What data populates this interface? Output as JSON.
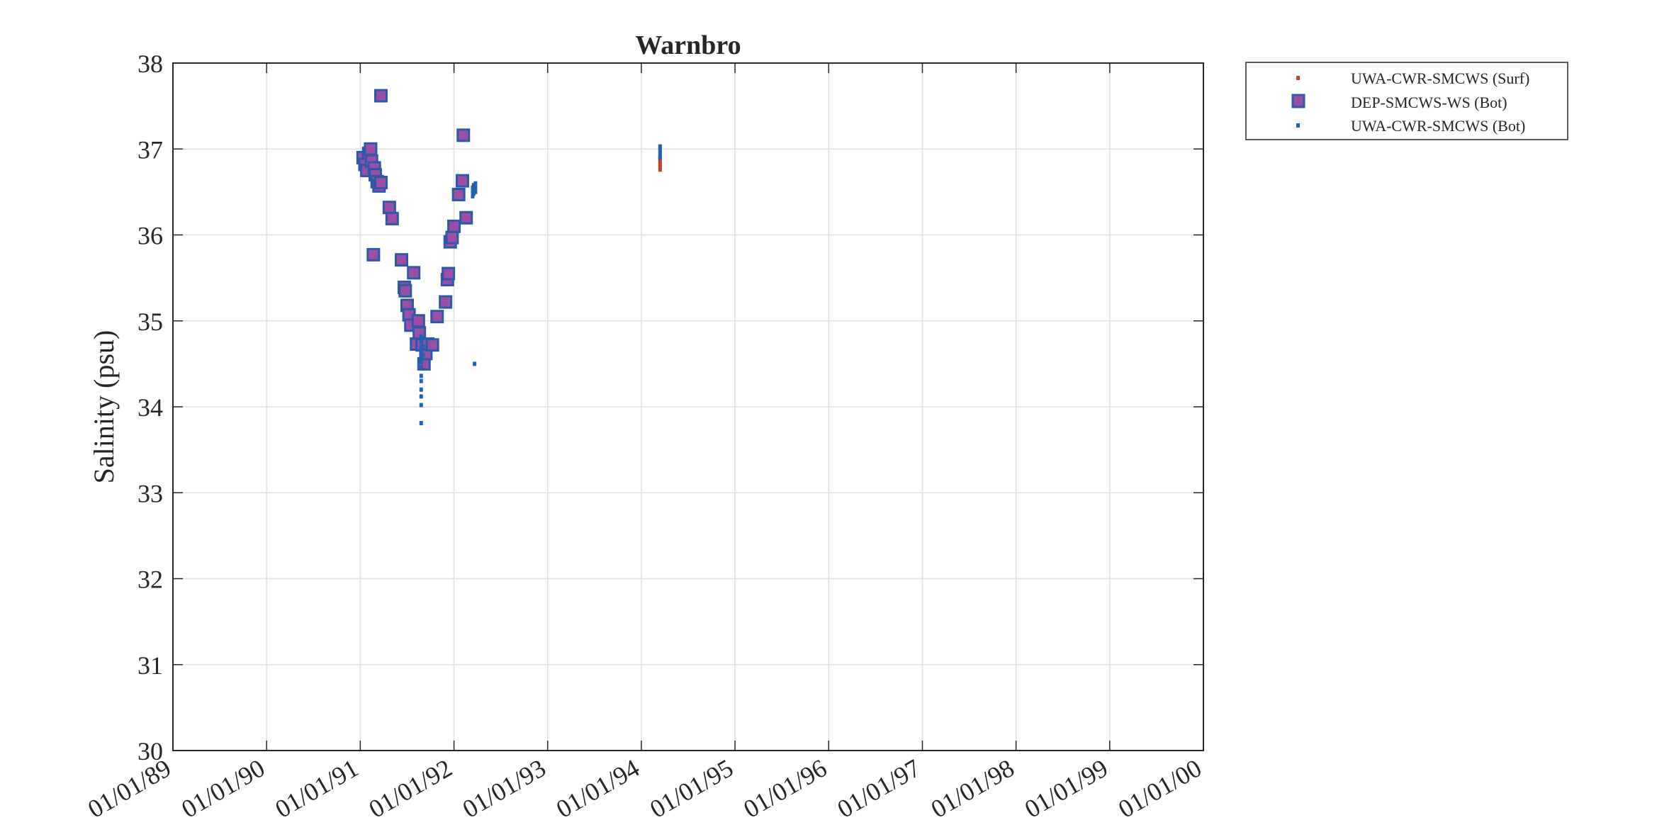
{
  "chart_data": {
    "type": "scatter",
    "title": "Warnbro",
    "xlabel": "",
    "ylabel": "Salinity (psu)",
    "ylim": [
      30,
      38
    ],
    "yticks": [
      30,
      31,
      32,
      33,
      34,
      35,
      36,
      37,
      38
    ],
    "xlim": [
      1989.0,
      2000.0
    ],
    "xtick_positions": [
      1989,
      1990,
      1991,
      1992,
      1993,
      1994,
      1995,
      1996,
      1997,
      1998,
      1999,
      2000
    ],
    "xtick_labels": [
      "01/01/89",
      "01/01/90",
      "01/01/91",
      "01/01/92",
      "01/01/93",
      "01/01/94",
      "01/01/95",
      "01/01/96",
      "01/01/97",
      "01/01/98",
      "01/01/99",
      "01/01/00"
    ],
    "grid": true,
    "legend_position": "outside-top-right",
    "colors": {
      "surf": "#c0452b",
      "dep_face": "#9d4fa6",
      "dep_edge": "#2e59a8",
      "bot": "#2163b0",
      "axis": "#262626",
      "grid": "#e0e0e0"
    },
    "series": [
      {
        "name": "UWA-CWR-SMCWS (Surf)",
        "marker": "dot",
        "x": [
          1994.2,
          1994.2,
          1994.2,
          1994.2,
          1994.2,
          1994.2
        ],
        "y": [
          36.76,
          36.79,
          36.82,
          36.85,
          36.88,
          36.9
        ]
      },
      {
        "name": "DEP-SMCWS-WS (Bot)",
        "marker": "square",
        "x": [
          1991.03,
          1991.05,
          1991.07,
          1991.09,
          1991.11,
          1991.12,
          1991.14,
          1991.15,
          1991.16,
          1991.18,
          1991.2,
          1991.22,
          1991.22,
          1991.31,
          1991.34,
          1991.44,
          1991.47,
          1991.48,
          1991.5,
          1991.52,
          1991.54,
          1991.57,
          1991.6,
          1991.62,
          1991.63,
          1991.66,
          1991.68,
          1991.7,
          1991.72,
          1991.77,
          1991.82,
          1991.91,
          1991.93,
          1991.94,
          1991.96,
          1991.98,
          1992.0,
          1992.05,
          1992.09,
          1992.1,
          1992.13
        ],
        "y": [
          36.9,
          36.82,
          36.75,
          36.95,
          37.0,
          36.86,
          35.77,
          36.78,
          36.7,
          36.62,
          36.57,
          37.62,
          36.61,
          36.32,
          36.19,
          35.71,
          35.39,
          35.35,
          35.18,
          35.07,
          34.95,
          35.56,
          34.73,
          35.0,
          34.86,
          34.72,
          34.5,
          34.62,
          34.73,
          34.72,
          35.05,
          35.22,
          35.48,
          35.55,
          35.92,
          35.97,
          36.1,
          36.47,
          36.63,
          37.16,
          36.2
        ]
      },
      {
        "name": "UWA-CWR-SMCWS (Bot)",
        "marker": "dot",
        "x": [
          1991.65,
          1991.65,
          1991.65,
          1991.65,
          1991.65,
          1991.65,
          1991.65,
          1991.65,
          1991.65,
          1991.65,
          1991.65,
          1991.65,
          1991.65,
          1991.67,
          1991.67,
          1991.67,
          1992.2,
          1992.2,
          1992.2,
          1992.21,
          1992.21,
          1992.21,
          1992.23,
          1992.23,
          1992.23,
          1992.22,
          1994.2,
          1994.2,
          1994.2,
          1994.2,
          1994.2,
          1994.2
        ],
        "y": [
          33.81,
          34.02,
          34.12,
          34.2,
          34.3,
          34.36,
          34.46,
          34.52,
          34.58,
          34.64,
          34.7,
          34.76,
          34.82,
          34.6,
          34.7,
          34.8,
          36.45,
          36.5,
          36.55,
          36.48,
          36.52,
          36.58,
          36.5,
          36.55,
          36.6,
          34.5,
          36.9,
          36.92,
          36.95,
          36.98,
          37.0,
          37.03
        ]
      }
    ]
  }
}
